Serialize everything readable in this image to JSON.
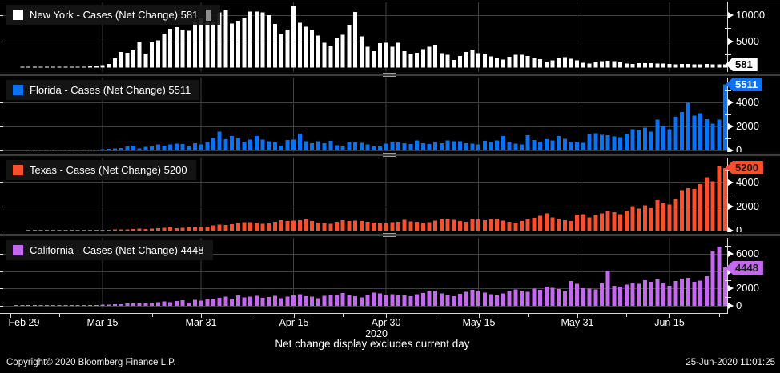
{
  "footer": {
    "note": "Net change display excludes current day",
    "copyright": "Copyright© 2020 Bloomberg Finance L.P.",
    "timestamp": "25-Jun-2020 11:01:25"
  },
  "x_axis": {
    "year": "2020",
    "labels": [
      {
        "day": 0,
        "label": "Feb 29"
      },
      {
        "day": 15,
        "label": "Mar 15"
      },
      {
        "day": 31,
        "label": "Mar 31"
      },
      {
        "day": 46,
        "label": "Apr 15"
      },
      {
        "day": 61,
        "label": "Apr 30"
      },
      {
        "day": 76,
        "label": "May 15"
      },
      {
        "day": 92,
        "label": "May 31"
      },
      {
        "day": 107,
        "label": "Jun 15"
      }
    ],
    "minor_tick_days": [
      8,
      23,
      39,
      54,
      69,
      84,
      100,
      115
    ]
  },
  "colors": {
    "background": "#000000",
    "grid": "#3f3f3f",
    "axis_line": "#d9d9d9",
    "axis_text": "#ffffff",
    "legend_background": "#161616"
  },
  "chart_data": {
    "type": "bar",
    "x_start": "Feb 29 2020",
    "x_end": "Jun 24 2020",
    "x_unit": "day",
    "grid": true,
    "legend_position": "top-left-per-panel",
    "panels": [
      {
        "region": "New York",
        "name": "new-york",
        "legend_label": "New York - Cases (Net Change) 581",
        "metric": "Cases (Net Change)",
        "last_value": 581,
        "badge_label": "581",
        "color": "#ffffff",
        "badge_text_color": "#000000",
        "has_text_cursor": true,
        "ylim": [
          0,
          12350
        ],
        "yticks": [
          {
            "value": 10000,
            "label": "10000"
          },
          {
            "value": 5000,
            "label": "5000"
          }
        ],
        "minor_yticks": [
          2500,
          7500
        ],
        "values": [
          0,
          0,
          1,
          2,
          6,
          11,
          22,
          33,
          44,
          57,
          65,
          89,
          109,
          190,
          324,
          432,
          681,
          1709,
          2950,
          2825,
          3254,
          4812,
          2657,
          4790,
          5146,
          6448,
          7377,
          7681,
          7195,
          6984,
          8669,
          9298,
          8632,
          8669,
          10482,
          10841,
          8327,
          8898,
          9378,
          10621,
          10575,
          10438,
          9946,
          8236,
          6337,
          7177,
          11571,
          8505,
          7753,
          7090,
          6054,
          4726,
          4178,
          5526,
          6244,
          8130,
          10553,
          5902,
          3951,
          3110,
          4585,
          4681,
          3942,
          4663,
          3120,
          2538,
          2786,
          3491,
          3935,
          4286,
          2715,
          2419,
          1430,
          2176,
          2971,
          3403,
          2762,
          2619,
          2088,
          1889,
          1525,
          2016,
          2437,
          2419,
          2174,
          1772,
          1589,
          1072,
          1379,
          1768,
          1942,
          1692,
          1376,
          941,
          789,
          1045,
          1216,
          1284,
          1198,
          958,
          781,
          702,
          812,
          853,
          823,
          789,
          724,
          658,
          620,
          712,
          684,
          618,
          592,
          648,
          636,
          608,
          581
        ]
      },
      {
        "region": "Florida",
        "name": "florida",
        "legend_label": "Florida - Cases (Net Change) 5511",
        "metric": "Cases (Net Change)",
        "last_value": 5511,
        "badge_label": "5511",
        "color": "#0a73f5",
        "badge_text_color": "#ffffff",
        "has_text_cursor": false,
        "ylim": [
          0,
          6065
        ],
        "yticks": [
          {
            "value": 4000,
            "label": "4000"
          },
          {
            "value": 2000,
            "label": "2000"
          },
          {
            "value": 0,
            "label": "0"
          }
        ],
        "minor_yticks": [
          1000,
          3000,
          5000
        ],
        "values": [
          0,
          0,
          0,
          2,
          2,
          4,
          4,
          9,
          13,
          18,
          24,
          28,
          47,
          53,
          77,
          116,
          126,
          155,
          186,
          328,
          413,
          161,
          294,
          344,
          484,
          391,
          500,
          578,
          533,
          324,
          599,
          496,
          700,
          1035,
          1575,
          930,
          1191,
          1024,
          735,
          911,
          1184,
          906,
          779,
          653,
          402,
          853,
          896,
          1413,
          754,
          614,
          768,
          610,
          788,
          440,
          346,
          734,
          660,
          621,
          501,
          347,
          333,
          577,
          735,
          667,
          615,
          542,
          819,
          613,
          526,
          738,
          608,
          820,
          775,
          767,
          613,
          553,
          502,
          808,
          691,
          828,
          1204,
          740,
          583,
          502,
          1273,
          873,
          732,
          927,
          825,
          1212,
          957,
          749,
          667,
          617,
          1317,
          1419,
          1305,
          1270,
          1180,
          1096,
          1371,
          1758,
          1698,
          1902,
          1575,
          2581,
          2016,
          1752,
          2783,
          3203,
          3980,
          2890,
          3100,
          2610,
          2220,
          2550,
          5511
        ]
      },
      {
        "region": "Texas",
        "name": "texas",
        "legend_label": "Texas - Cases (Net Change) 5200",
        "metric": "Cases (Net Change)",
        "last_value": 5200,
        "badge_label": "5200",
        "color": "#f8502d",
        "badge_text_color": "#1a1a1a",
        "has_text_cursor": false,
        "ylim": [
          0,
          6065
        ],
        "yticks": [
          {
            "value": 4000,
            "label": "4000"
          },
          {
            "value": 2000,
            "label": "2000"
          },
          {
            "value": 0,
            "label": "0"
          }
        ],
        "minor_yticks": [
          1000,
          3000,
          5000
        ],
        "values": [
          0,
          0,
          0,
          1,
          3,
          3,
          5,
          8,
          11,
          14,
          18,
          23,
          29,
          38,
          33,
          42,
          57,
          85,
          112,
          97,
          132,
          153,
          137,
          182,
          186,
          244,
          312,
          214,
          224,
          266,
          298,
          313,
          335,
          420,
          502,
          462,
          522,
          636,
          714,
          684,
          642,
          564,
          585,
          733,
          871,
          806,
          829,
          867,
          948,
          793,
          673,
          622,
          561,
          741,
          862,
          792,
          824,
          794,
          732,
          674,
          598,
          612,
          692,
          743,
          903,
          781,
          723,
          637,
          712,
          841,
          956,
          1008,
          898,
          814,
          723,
          1003,
          946,
          872,
          938,
          1005,
          842,
          743,
          678,
          812,
          934,
          1083,
          1219,
          1449,
          1104,
          958,
          873,
          798,
          1338,
          1358,
          1093,
          1284,
          1423,
          1609,
          1523,
          1381,
          1668,
          2026,
          1826,
          2102,
          1858,
          2532,
          2326,
          2166,
          2622,
          3358,
          3516,
          3454,
          3866,
          4430,
          4098,
          5330,
          5200
        ]
      },
      {
        "region": "California",
        "name": "california",
        "legend_label": "California - Cases (Net Change) 4448",
        "metric": "Cases (Net Change)",
        "last_value": 4448,
        "badge_label": "4448",
        "color": "#c469ef",
        "badge_text_color": "#1a1a1a",
        "has_text_cursor": false,
        "ylim": [
          0,
          7900
        ],
        "yticks": [
          {
            "value": 6000,
            "label": "6000"
          },
          {
            "value": 4000,
            "label": "4000"
          },
          {
            "value": 2000,
            "label": "2000"
          },
          {
            "value": 0,
            "label": "0"
          }
        ],
        "minor_yticks": [
          1000,
          3000,
          5000,
          7000
        ],
        "values": [
          0,
          4,
          6,
          9,
          11,
          14,
          21,
          26,
          33,
          39,
          46,
          59,
          81,
          96,
          109,
          123,
          158,
          176,
          204,
          292,
          267,
          316,
          339,
          304,
          424,
          527,
          441,
          577,
          634,
          389,
          699,
          601,
          826,
          733,
          916,
          1089,
          802,
          1188,
          958,
          1085,
          1177,
          924,
          1035,
          1142,
          882,
          1086,
          1208,
          1357,
          1125,
          1053,
          886,
          1139,
          1324,
          1275,
          1468,
          1243,
          1106,
          958,
          1324,
          1532,
          1448,
          1275,
          1366,
          1275,
          1188,
          1108,
          1328,
          1510,
          1668,
          1768,
          1448,
          1248,
          1106,
          1408,
          1628,
          1862,
          1708,
          1548,
          1368,
          1206,
          1448,
          1708,
          1902,
          1768,
          1628,
          2012,
          1848,
          2247,
          2108,
          1948,
          1668,
          2866,
          2568,
          2066,
          2012,
          1908,
          2588,
          4090,
          2318,
          2212,
          2468,
          2668,
          2568,
          2968,
          2768,
          3068,
          2618,
          2318,
          2868,
          3168,
          3268,
          2768,
          2938,
          3440,
          6412,
          6884,
          4448
        ]
      }
    ]
  }
}
